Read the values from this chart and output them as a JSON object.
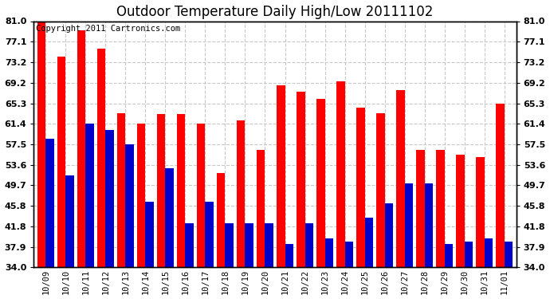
{
  "title": "Outdoor Temperature Daily High/Low 20111102",
  "copyright": "Copyright 2011 Cartronics.com",
  "categories": [
    "10/09",
    "10/10",
    "10/11",
    "10/12",
    "10/13",
    "10/14",
    "10/15",
    "10/16",
    "10/17",
    "10/18",
    "10/19",
    "10/20",
    "10/21",
    "10/22",
    "10/23",
    "10/24",
    "10/25",
    "10/26",
    "10/27",
    "10/28",
    "10/29",
    "10/30",
    "10/31",
    "11/01"
  ],
  "highs": [
    81.0,
    74.3,
    79.2,
    75.8,
    63.5,
    61.5,
    63.2,
    63.2,
    61.5,
    52.0,
    62.0,
    56.5,
    68.8,
    67.5,
    66.2,
    69.5,
    64.5,
    63.5,
    67.8,
    56.5,
    56.5,
    55.5,
    55.0,
    65.3
  ],
  "lows": [
    58.5,
    51.5,
    61.5,
    60.2,
    57.5,
    46.5,
    53.0,
    42.5,
    46.5,
    42.5,
    42.5,
    42.5,
    38.5,
    42.5,
    39.5,
    39.0,
    43.5,
    46.2,
    50.0,
    50.0,
    38.5,
    39.0,
    39.5,
    39.0
  ],
  "high_color": "#ff0000",
  "low_color": "#0000cc",
  "background_color": "#ffffff",
  "plot_bg_color": "#ffffff",
  "grid_color": "#c8c8c8",
  "yticks": [
    34.0,
    37.9,
    41.8,
    45.8,
    49.7,
    53.6,
    57.5,
    61.4,
    65.3,
    69.2,
    73.2,
    77.1,
    81.0
  ],
  "ylim": [
    34.0,
    81.0
  ],
  "ybase": 34.0,
  "title_fontsize": 12,
  "copyright_fontsize": 7.5
}
